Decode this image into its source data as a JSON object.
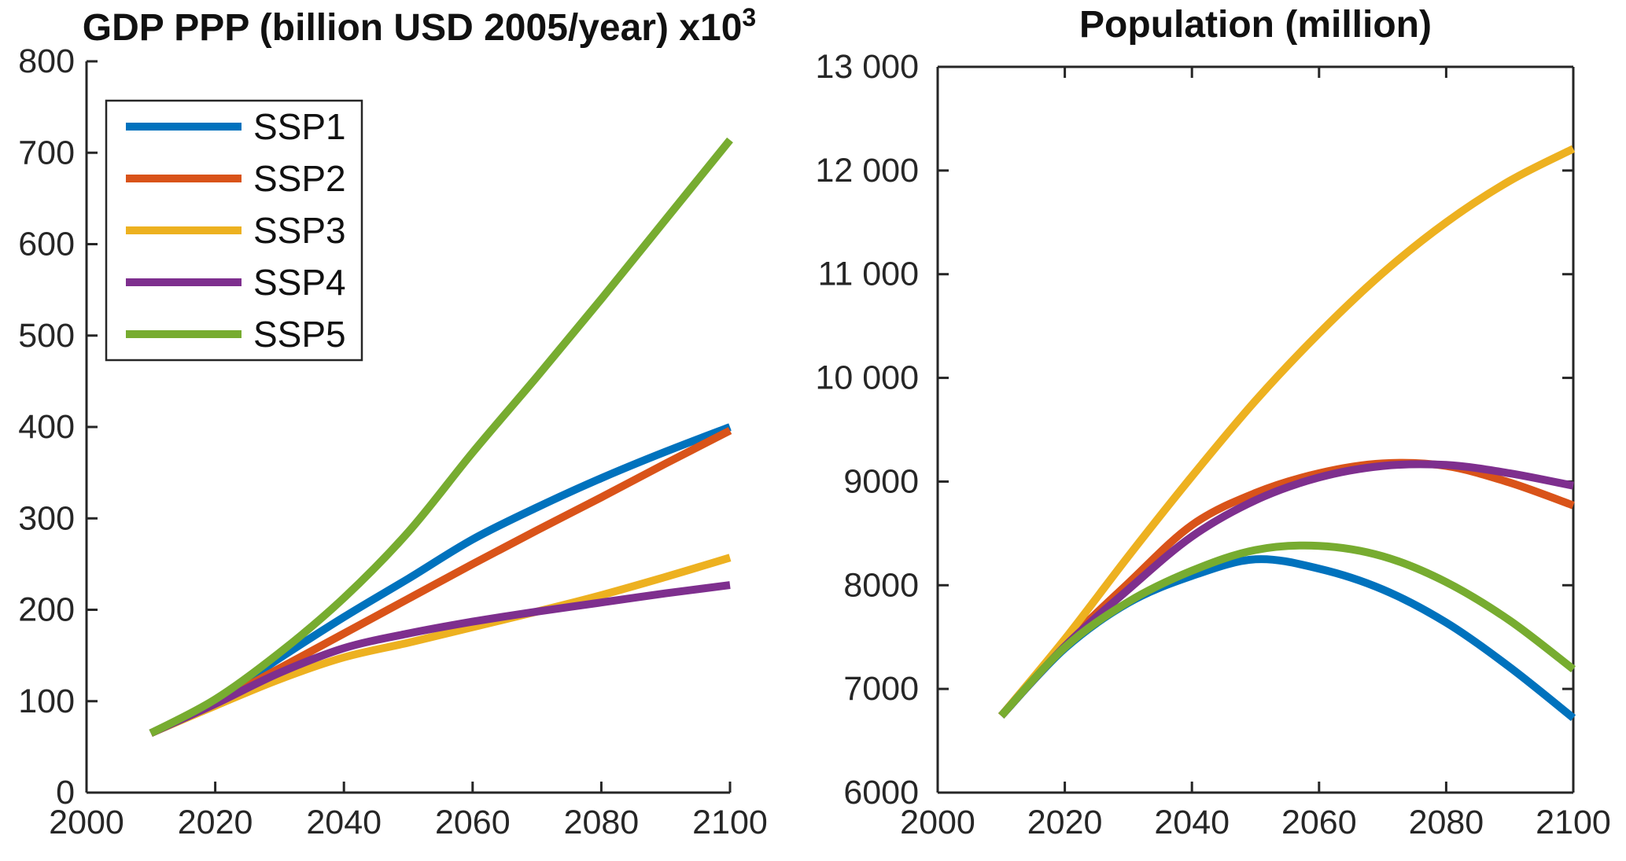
{
  "figure": {
    "background": "#ffffff",
    "axis_color": "#262626",
    "title_color": "#111111"
  },
  "chart_data": [
    {
      "type": "line",
      "title": "GDP PPP (billion USD 2005/year) x10³",
      "title_main": "GDP PPP (billion USD 2005/year) x10",
      "title_sup": "3",
      "xlabel": "",
      "ylabel": "",
      "xlim": [
        2000,
        2100
      ],
      "ylim": [
        0,
        800
      ],
      "xticks": [
        2000,
        2020,
        2040,
        2060,
        2080,
        2100
      ],
      "xtick_labels": [
        "2000",
        "2020",
        "2040",
        "2060",
        "2080",
        "2100"
      ],
      "yticks": [
        0,
        100,
        200,
        300,
        400,
        500,
        600,
        700,
        800
      ],
      "ytick_labels": [
        "0",
        "100",
        "200",
        "300",
        "400",
        "500",
        "600",
        "700",
        "800"
      ],
      "grid": false,
      "box": false,
      "legend": {
        "position": "top-left",
        "entries": [
          "SSP1",
          "SSP2",
          "SSP3",
          "SSP4",
          "SSP5"
        ]
      },
      "x": [
        2010,
        2020,
        2030,
        2040,
        2050,
        2060,
        2070,
        2080,
        2090,
        2100
      ],
      "series": [
        {
          "name": "SSP1",
          "color": "#0072BD",
          "values": [
            65,
            100,
            147,
            192,
            234,
            277,
            312,
            344,
            373,
            400
          ]
        },
        {
          "name": "SSP2",
          "color": "#D95319",
          "values": [
            65,
            98,
            136,
            174,
            212,
            250,
            287,
            323,
            360,
            396
          ]
        },
        {
          "name": "SSP3",
          "color": "#EDB120",
          "values": [
            65,
            95,
            124,
            148,
            164,
            181,
            198,
            216,
            236,
            257
          ]
        },
        {
          "name": "SSP4",
          "color": "#7E2F8E",
          "values": [
            65,
            97,
            131,
            158,
            174,
            187,
            198,
            208,
            218,
            227
          ]
        },
        {
          "name": "SSP5",
          "color": "#77AC30",
          "values": [
            65,
            102,
            153,
            213,
            285,
            372,
            455,
            540,
            627,
            714
          ]
        }
      ]
    },
    {
      "type": "line",
      "title": "Population (million)",
      "title_main": "Population (million)",
      "xlabel": "",
      "ylabel": "",
      "xlim": [
        2000,
        2100
      ],
      "ylim": [
        6000,
        13000
      ],
      "xticks": [
        2000,
        2020,
        2040,
        2060,
        2080,
        2100
      ],
      "xtick_labels": [
        "2000",
        "2020",
        "2040",
        "2060",
        "2080",
        "2100"
      ],
      "yticks": [
        6000,
        7000,
        8000,
        9000,
        10000,
        11000,
        12000,
        13000
      ],
      "ytick_labels": [
        "6000",
        "7000",
        "8000",
        "9000",
        "10 000",
        "11 000",
        "12 000",
        "13 000"
      ],
      "grid": false,
      "box": true,
      "legend": null,
      "x": [
        2010,
        2020,
        2030,
        2040,
        2050,
        2060,
        2070,
        2080,
        2090,
        2100
      ],
      "series": [
        {
          "name": "SSP1",
          "color": "#0072BD",
          "values": [
            6740,
            7390,
            7830,
            8090,
            8250,
            8160,
            7960,
            7640,
            7210,
            6720
          ]
        },
        {
          "name": "SSP2",
          "color": "#D95319",
          "values": [
            6740,
            7430,
            8020,
            8580,
            8890,
            9080,
            9175,
            9150,
            8990,
            8770
          ]
        },
        {
          "name": "SSP3",
          "color": "#EDB120",
          "values": [
            6740,
            7480,
            8280,
            9050,
            9780,
            10430,
            11010,
            11500,
            11900,
            12210
          ]
        },
        {
          "name": "SSP4",
          "color": "#7E2F8E",
          "values": [
            6740,
            7410,
            7960,
            8470,
            8820,
            9040,
            9150,
            9160,
            9080,
            8960
          ]
        },
        {
          "name": "SSP5",
          "color": "#77AC30",
          "values": [
            6740,
            7400,
            7840,
            8140,
            8340,
            8380,
            8280,
            8030,
            7660,
            7190
          ]
        }
      ]
    }
  ]
}
